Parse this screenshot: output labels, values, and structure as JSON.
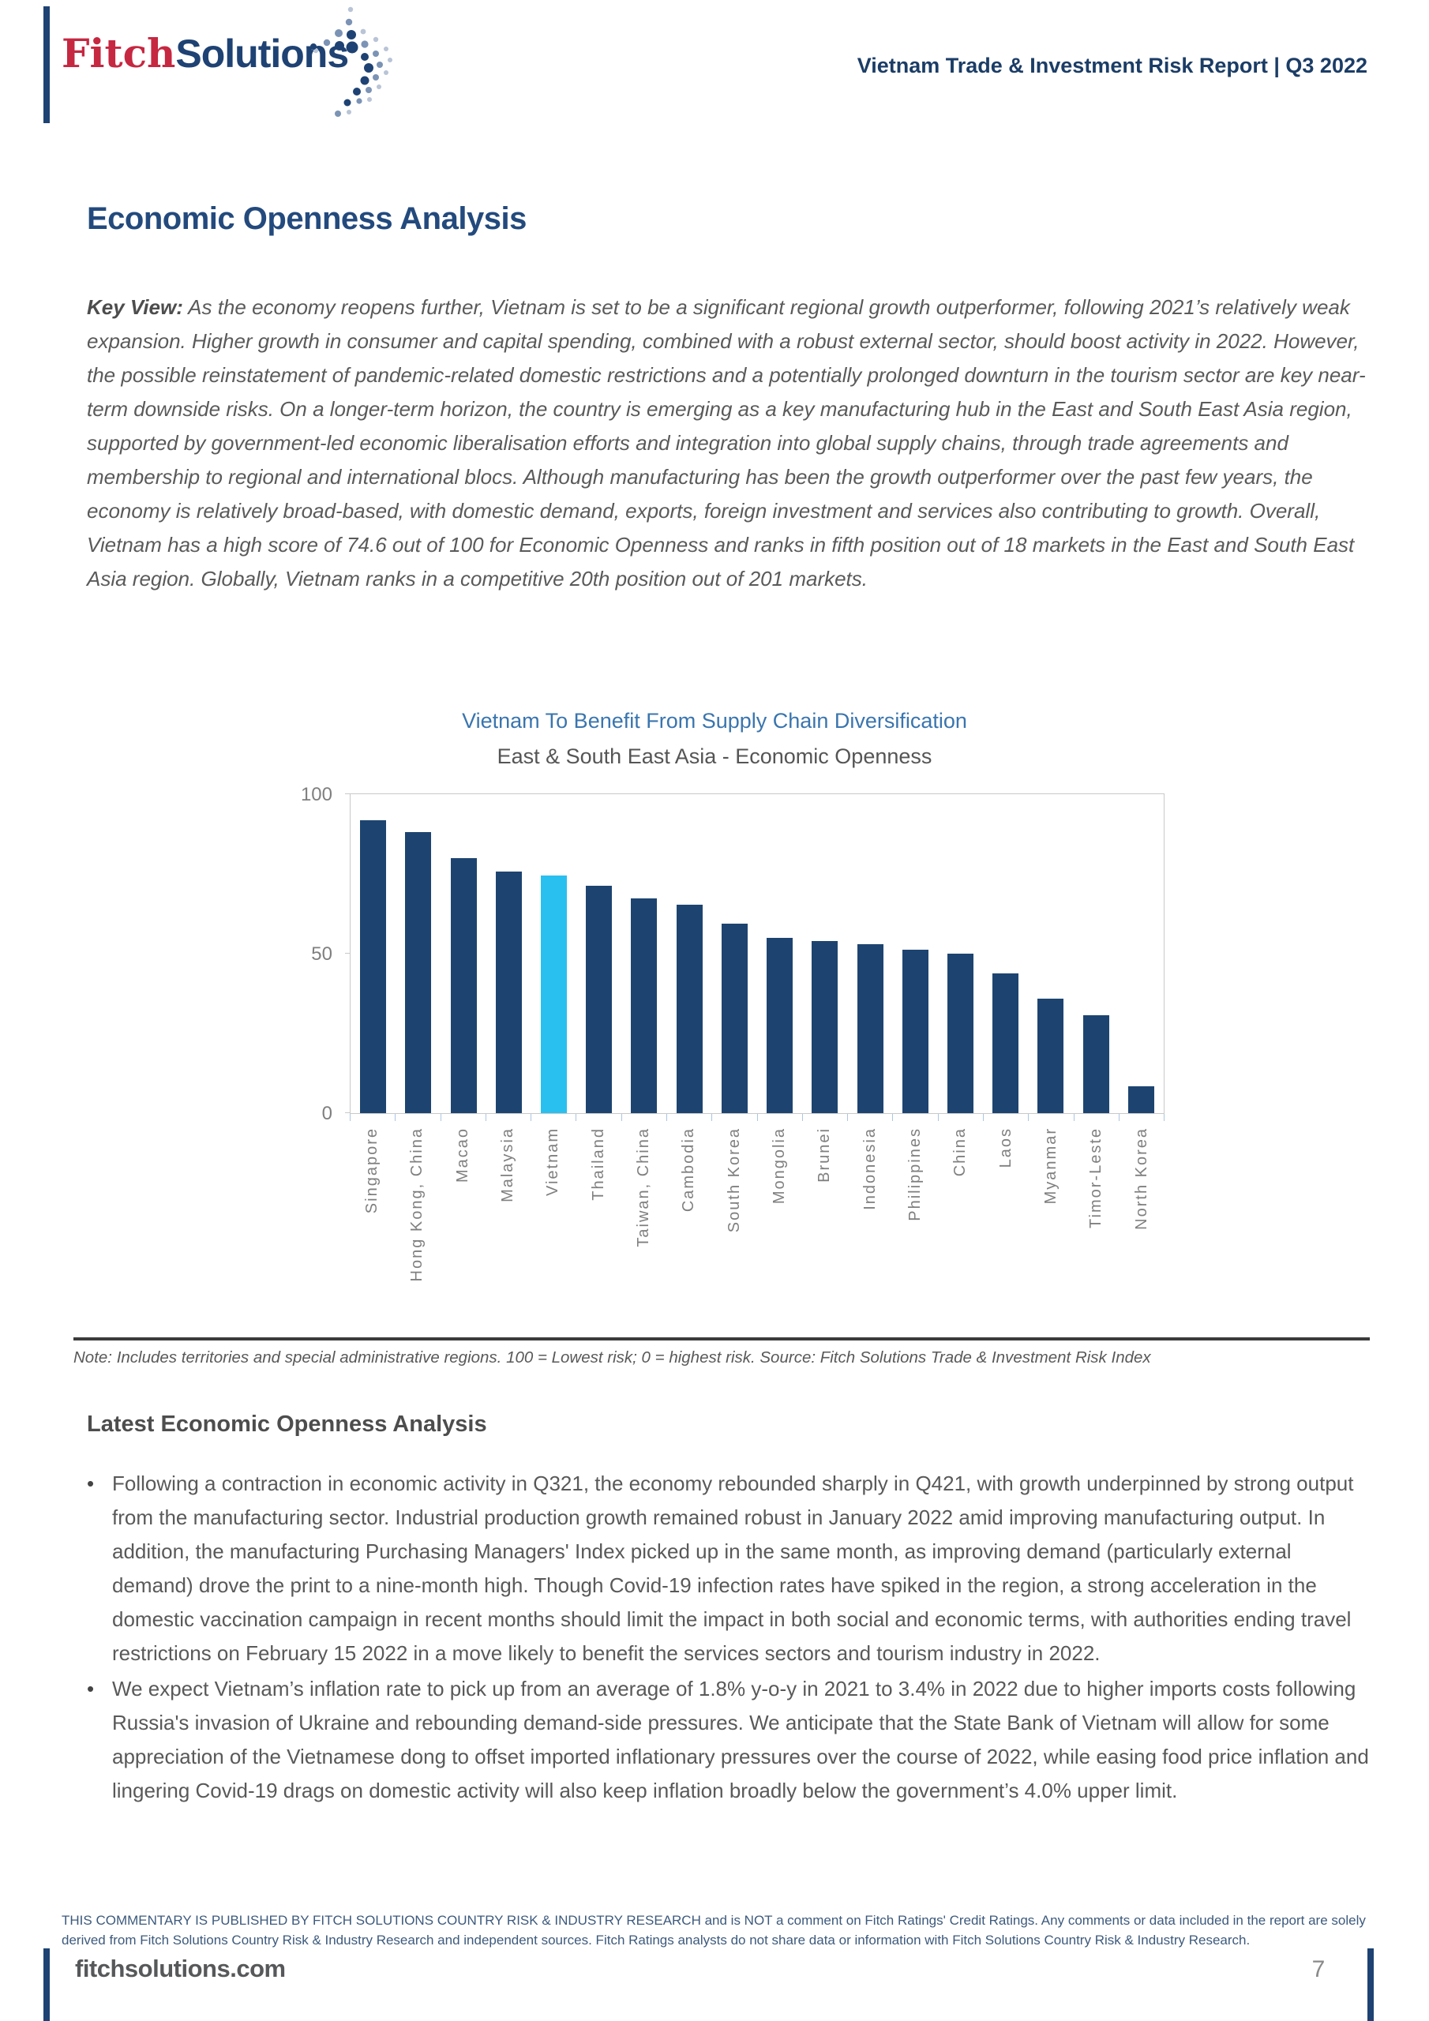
{
  "header": {
    "logo_fitch": "Fitch",
    "logo_solutions": "Solutions",
    "report_title": "Vietnam Trade & Investment Risk Report | Q3 2022"
  },
  "main": {
    "heading": "Economic Openness Analysis",
    "key_view_label": "Key View:",
    "key_view_text": " As the economy reopens further, Vietnam is set to be a significant regional growth outperformer, following 2021’s relatively weak expansion. Higher growth in consumer and capital spending, combined with a robust external sector, should boost activity in 2022. However, the possible reinstatement of pandemic-related domestic restrictions and a potentially prolonged downturn in the tourism sector are key near-term downside risks. On a longer-term horizon, the country is emerging as a key manufacturing hub in the East and South East Asia region, supported by government-led economic liberalisation efforts and integration into global supply chains, through trade agreements and membership to regional and international blocs. Although manufacturing has been the growth outperformer over the past few years, the economy is relatively broad-based, with domestic demand, exports, foreign investment and services also contributing to growth. Overall, Vietnam has a high score of  74.6 out of 100 for Economic Openness and ranks in fifth position out of 18 markets in the East and South East Asia region. Globally, Vietnam ranks in a competitive 20th position out of 201 markets."
  },
  "chart_data": {
    "type": "bar",
    "title": "Vietnam To Benefit From Supply Chain Diversification",
    "subtitle": "East & South East Asia - Economic Openness",
    "categories": [
      "Singapore",
      "Hong Kong, China",
      "Macao",
      "Malaysia",
      "Vietnam",
      "Thailand",
      "Taiwan, China",
      "Cambodia",
      "South Korea",
      "Mongolia",
      "Brunei",
      "Indonesia",
      "Philippines",
      "China",
      "Laos",
      "Myanmar",
      "Timor-Leste",
      "North Korea"
    ],
    "values": [
      91.9,
      88.2,
      80.0,
      75.8,
      74.6,
      71.4,
      67.4,
      65.3,
      59.3,
      54.9,
      53.9,
      52.9,
      51.3,
      50.1,
      43.7,
      35.8,
      30.7,
      8.3
    ],
    "highlight_category": "Vietnam",
    "bar_color": "#1d4470",
    "highlight_color": "#29c0f0",
    "ylim": [
      0,
      100
    ],
    "yticks": [
      0,
      50,
      100
    ],
    "grid": false,
    "legend": false,
    "note": "Note: Includes territories and special administrative regions. 100 = Lowest risk; 0 = highest risk. Source: Fitch Solutions Trade & Investment Risk Index"
  },
  "analysis": {
    "heading": "Latest Economic Openness Analysis",
    "bullets": [
      "Following a contraction in economic activity in Q321, the economy rebounded sharply in Q421, with growth underpinned by strong output from the manufacturing sector. Industrial production growth remained robust in January 2022 amid improving manufacturing output. In addition, the manufacturing Purchasing Managers' Index picked up in the same month, as improving demand (particularly external demand) drove the print to a nine-month high. Though Covid-19 infection rates have spiked in the region, a strong acceleration in the domestic vaccination campaign in recent months should limit the impact in both social and economic terms, with authorities ending travel restrictions on February 15 2022 in a move likely to benefit the services sectors and tourism industry in 2022.",
      "We expect Vietnam’s inflation rate to pick up from an average of 1.8% y-o-y in 2021 to 3.4% in 2022 due to higher imports costs following Russia's invasion of Ukraine and rebounding demand-side pressures. We anticipate that the State Bank of Vietnam will allow for some appreciation of the Vietnamese dong to offset imported inflationary pressures over the course of 2022, while easing food price inflation and lingering Covid-19 drags on domestic activity will also keep inflation broadly below the government’s 4.0% upper limit."
    ]
  },
  "footer": {
    "disclaimer": "THIS COMMENTARY IS PUBLISHED BY FITCH SOLUTIONS COUNTRY RISK & INDUSTRY RESEARCH and is NOT a comment on Fitch Ratings' Credit Ratings. Any comments or data included in the report are solely derived from Fitch Solutions Country Risk & Industry Research and independent sources. Fitch Ratings analysts do not share data or information with Fitch Solutions Country Risk & Industry Research.",
    "site": "fitchsolutions.com",
    "page_number": "7"
  },
  "colors": {
    "brand_navy": "#1e4273",
    "brand_red": "#c62741",
    "bar_navy": "#1d4470",
    "bar_cyan": "#29c0f0",
    "chart_title_blue": "#3a75ae",
    "body_gray": "#595959",
    "disclaimer_blue": "#3d5a7d"
  }
}
